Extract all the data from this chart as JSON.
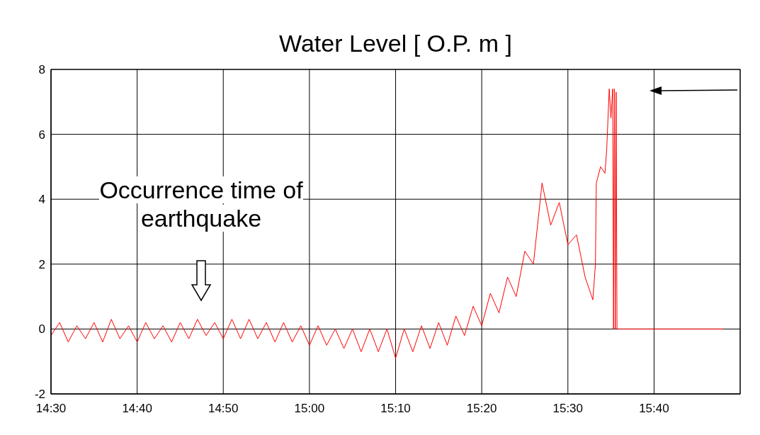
{
  "chart_data": {
    "type": "line",
    "title": "Water Level [ O.P. m ]",
    "x": [
      14.5,
      14.5167,
      14.5333,
      14.55,
      14.5667,
      14.5833,
      14.6,
      14.6167,
      14.6333,
      14.65,
      14.6667,
      14.6833,
      14.7,
      14.7167,
      14.7333,
      14.75,
      14.7667,
      14.7833,
      14.8,
      14.8167,
      14.8333,
      14.85,
      14.8667,
      14.8833,
      14.9,
      14.9167,
      14.9333,
      14.95,
      14.9667,
      14.9833,
      15,
      15.0167,
      15.0333,
      15.05,
      15.0667,
      15.0833,
      15.1,
      15.1167,
      15.1333,
      15.15,
      15.1667,
      15.1833,
      15.2,
      15.2167,
      15.2333,
      15.25,
      15.2667,
      15.2833,
      15.3,
      15.3167,
      15.3333,
      15.35,
      15.3667,
      15.3833,
      15.4,
      15.4167,
      15.4333,
      15.45,
      15.4667,
      15.4833,
      15.5,
      15.5167,
      15.5333,
      15.5483,
      15.5533,
      15.555,
      15.5633,
      15.5717,
      15.575,
      15.58,
      15.5833,
      15.5867,
      15.5883,
      15.59,
      15.5917,
      15.5933,
      15.595,
      15.8
    ],
    "series": [
      {
        "color": "#ff0000",
        "values": [
          -0.2,
          0.2,
          -0.4,
          0.1,
          -0.3,
          0.2,
          -0.4,
          0.3,
          -0.3,
          0.1,
          -0.4,
          0.2,
          -0.3,
          0.1,
          -0.4,
          0.2,
          -0.3,
          0.3,
          -0.2,
          0.2,
          -0.3,
          0.3,
          -0.3,
          0.3,
          -0.3,
          0.2,
          -0.4,
          0.2,
          -0.4,
          0.1,
          -0.5,
          0.1,
          -0.5,
          0,
          -0.6,
          0,
          -0.7,
          0,
          -0.7,
          0,
          -0.9,
          0,
          -0.7,
          0.1,
          -0.6,
          0.2,
          -0.5,
          0.4,
          -0.2,
          0.7,
          0.1,
          1.1,
          0.5,
          1.6,
          1,
          2.4,
          2,
          4.5,
          3.2,
          3.9,
          2.6,
          2.9,
          1.6,
          0.9,
          2,
          4.5,
          5,
          4.8,
          5.5,
          7.4,
          6.5,
          7.4,
          0,
          7.4,
          0,
          7.3,
          0,
          0
        ]
      }
    ],
    "xlim": [
      14.5,
      15.8333
    ],
    "xticks": [
      {
        "value": 14.5,
        "label": "14:30"
      },
      {
        "value": 14.6667,
        "label": "14:40"
      },
      {
        "value": 14.8333,
        "label": "14:50"
      },
      {
        "value": 15,
        "label": "15:00"
      },
      {
        "value": 15.1667,
        "label": "15:10"
      },
      {
        "value": 15.3333,
        "label": "15:20"
      },
      {
        "value": 15.5,
        "label": "15:30"
      },
      {
        "value": 15.6667,
        "label": "15:40"
      }
    ],
    "ylim": [
      -2,
      8
    ],
    "yticks": [
      -2,
      0,
      2,
      4,
      6,
      8
    ],
    "grid": true,
    "marker": "none",
    "line_style": "solid",
    "annotations": [
      "Occurrence time of earthquake"
    ]
  }
}
